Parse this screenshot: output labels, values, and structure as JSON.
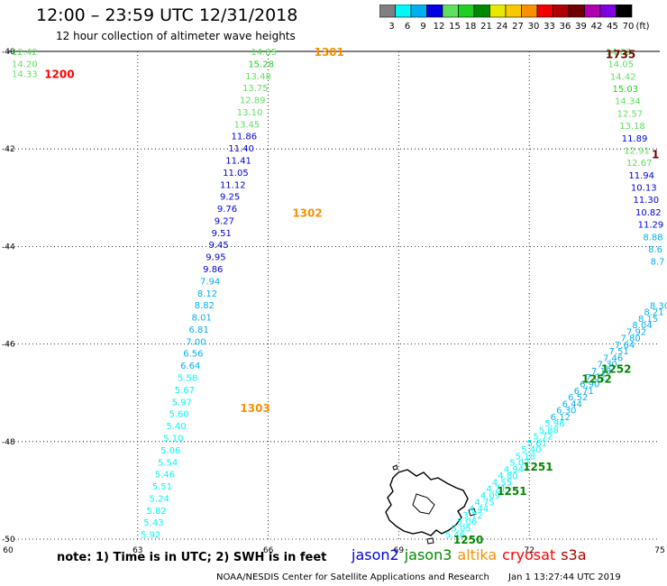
{
  "header": {
    "title": "12:00 – 23:59 UTC 12/31/2018",
    "subtitle": "12 hour collection of altimeter wave heights"
  },
  "colorbar": {
    "colors": [
      "#808080",
      "#00f8f8",
      "#00b0f0",
      "#0000e0",
      "#60e060",
      "#20d020",
      "#008800",
      "#e8e800",
      "#f8c800",
      "#f89000",
      "#f00000",
      "#b00000",
      "#700000",
      "#b000b0",
      "#8000e0",
      "#000000"
    ],
    "labels": [
      "3",
      "6",
      "9",
      "12",
      "15",
      "18",
      "21",
      "24",
      "27",
      "30",
      "33",
      "36",
      "39",
      "42",
      "45",
      "70",
      "(ft)"
    ]
  },
  "map": {
    "lon_ticks": [
      "60",
      "63",
      "66",
      "69",
      "72",
      "75"
    ],
    "lat_ticks": [
      "-40",
      "-42",
      "-44",
      "-46",
      "-48",
      "-50"
    ]
  },
  "tracks": [
    {
      "name": "altika-track-west",
      "lon_start": 65.9,
      "lat_start": -40.0,
      "lon_end": 63.3,
      "lat_end": -49.9,
      "values": [
        "14.85",
        "15.28",
        "13.48",
        "13.75",
        "12.89",
        "13.10",
        "13.45",
        "11.86",
        "11.40",
        "11.41",
        "11.05",
        "11.12",
        "9.25",
        "9.76",
        "9.27",
        "9.51",
        "9.45",
        "9.95",
        "9.86",
        "7.94",
        "8.12",
        "8.82",
        "8.01",
        "6.81",
        "7.00",
        "6.56",
        "6.64",
        "5.58",
        "5.67",
        "5.97",
        "5.60",
        "5.40",
        "5.10",
        "5.06",
        "5.54",
        "5.46",
        "5.51",
        "5.24",
        "5.82",
        "5.43",
        "5.92"
      ]
    },
    {
      "name": "track-northeast",
      "lon_start": 74.05,
      "lat_start": -40.0,
      "lon_end": 74.95,
      "lat_end": -44.3,
      "values": [
        "14.82",
        "14.05",
        "14.42",
        "15.03",
        "14.34",
        "12.57",
        "13.18",
        "11.89",
        "12.91",
        "12.67",
        "11.94",
        "10.13",
        "11.30",
        "10.82",
        "11.29",
        "8.88",
        "8.6",
        "8.7"
      ]
    },
    {
      "name": "jason3-track-southeast",
      "lon_start": 70.3,
      "lat_start": -49.9,
      "lon_end": 75.0,
      "lat_end": -45.2,
      "values": [
        "5.46",
        "5.05",
        "5.06",
        "3.72",
        "4.44",
        "4.75",
        "4.09",
        "4.21",
        "4.55",
        "4.80",
        "4.94",
        "5.02",
        "5.18",
        "5.40",
        "5.61",
        "5.72",
        "5.88",
        "5.96",
        "6.12",
        "6.30",
        "6.44",
        "6.52",
        "6.71",
        "6.90",
        "7.02",
        "7.18",
        "7.30",
        "7.46",
        "7.51",
        "7.64",
        "7.80",
        "7.92",
        "8.04",
        "8.15",
        "8.21",
        "8.30"
      ]
    }
  ],
  "time_labels": [
    {
      "text": "1200",
      "lon": 61.2,
      "lat": -40.45,
      "color": "#ff0000"
    },
    {
      "text": "1301",
      "lon": 67.4,
      "lat": -40.0,
      "color": "#f89000"
    },
    {
      "text": "1302",
      "lon": 66.9,
      "lat": -43.3,
      "color": "#f89000"
    },
    {
      "text": "1303",
      "lon": 65.7,
      "lat": -47.3,
      "color": "#f89000"
    },
    {
      "text": "1735",
      "lon": 74.1,
      "lat": -40.05,
      "color": "#700000"
    },
    {
      "text": "1",
      "lon": 74.9,
      "lat": -42.1,
      "color": "#700000"
    },
    {
      "text": "1252",
      "lon": 74.0,
      "lat": -46.5,
      "color": "#008800"
    },
    {
      "text": "1252",
      "lon": 73.55,
      "lat": -46.7,
      "color": "#008800"
    },
    {
      "text": "1251",
      "lon": 72.2,
      "lat": -48.5,
      "color": "#008800"
    },
    {
      "text": "1251",
      "lon": 71.6,
      "lat": -49.0,
      "color": "#008800"
    },
    {
      "text": "1250",
      "lon": 70.6,
      "lat": -50.0,
      "color": "#008800"
    }
  ],
  "corner_values": [
    {
      "text": "12.42",
      "lon": 60.4,
      "lat": -40.0,
      "color": "#60e060"
    },
    {
      "text": "14.20",
      "lon": 60.4,
      "lat": -40.25,
      "color": "#60e060"
    },
    {
      "text": "14.33",
      "lon": 60.4,
      "lat": -40.45,
      "color": "#60e060"
    }
  ],
  "note": "note:  1) Time is in UTC;  2) SWH is in feet",
  "legend": [
    {
      "text": "jason2",
      "color": "#0000e0"
    },
    {
      "text": "jason3",
      "color": "#008800"
    },
    {
      "text": "altika",
      "color": "#f89000"
    },
    {
      "text": "cryosat",
      "color": "#ff0000"
    },
    {
      "text": "s3a",
      "color": "#b00000"
    }
  ],
  "footer": {
    "credit": "NOAA/NESDIS Center for Satellite Applications and Research",
    "timestamp": "Jan  1 13:27:44 UTC 2019"
  }
}
